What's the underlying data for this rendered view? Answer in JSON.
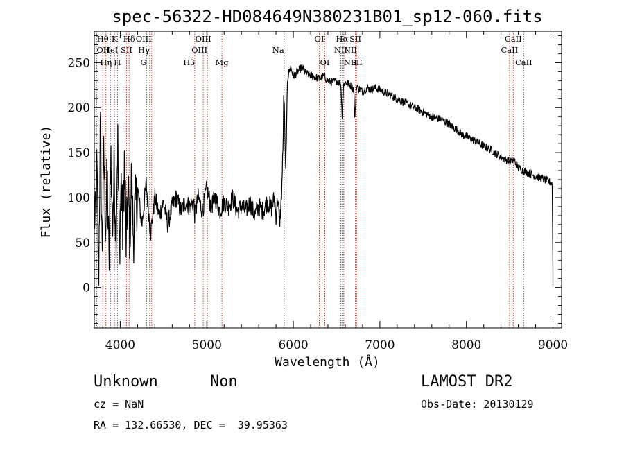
{
  "chart_data": {
    "type": "line",
    "title": "spec-56322-HD084649N380231B01_sp12-060.fits",
    "xlabel": "Wavelength (Å)",
    "ylabel": "Flux (relative)",
    "xlim": [
      3700,
      9100
    ],
    "ylim": [
      -45,
      285
    ],
    "xticks": [
      4000,
      5000,
      6000,
      7000,
      8000,
      9000
    ],
    "yticks": [
      0,
      50,
      100,
      150,
      200,
      250
    ],
    "grid": false,
    "series": [
      {
        "values_desc": "continuum anchor points of spectrum",
        "x": [
          3700,
          3710,
          3730,
          3750,
          3770,
          3790,
          3810,
          3830,
          3850,
          3870,
          3890,
          3910,
          3930,
          3950,
          3970,
          3990,
          4010,
          4030,
          4050,
          4070,
          4090,
          4110,
          4130,
          4150,
          4200,
          4250,
          4300,
          4350,
          4400,
          4450,
          4500,
          4550,
          4600,
          4650,
          4700,
          4750,
          4800,
          4850,
          4861,
          4900,
          4950,
          5000,
          5050,
          5100,
          5150,
          5200,
          5250,
          5300,
          5350,
          5400,
          5450,
          5500,
          5550,
          5600,
          5650,
          5700,
          5750,
          5780,
          5800,
          5820,
          5840,
          5860,
          5880,
          5890,
          5900,
          5910,
          5920,
          5930,
          5950,
          5970,
          6000,
          6050,
          6100,
          6150,
          6200,
          6250,
          6300,
          6350,
          6400,
          6450,
          6500,
          6550,
          6563,
          6580,
          6600,
          6650,
          6700,
          6710,
          6730,
          6750,
          6800,
          6850,
          6900,
          6950,
          7000,
          7100,
          7200,
          7300,
          7400,
          7500,
          7600,
          7700,
          7800,
          7850,
          7900,
          7950,
          8000,
          8100,
          8200,
          8300,
          8400,
          8500,
          8550,
          8600,
          8700,
          8800,
          8900,
          8950,
          9000
        ],
        "y": [
          95,
          60,
          130,
          10,
          180,
          40,
          150,
          70,
          120,
          20,
          160,
          70,
          130,
          60,
          170,
          40,
          120,
          60,
          150,
          40,
          110,
          60,
          120,
          60,
          110,
          70,
          115,
          60,
          100,
          80,
          95,
          70,
          90,
          100,
          85,
          95,
          90,
          95,
          80,
          100,
          85,
          110,
          90,
          100,
          85,
          95,
          90,
          100,
          85,
          90,
          85,
          95,
          80,
          90,
          85,
          95,
          88,
          100,
          80,
          100,
          70,
          95,
          150,
          220,
          180,
          130,
          160,
          230,
          240,
          245,
          235,
          240,
          245,
          238,
          236,
          234,
          232,
          235,
          230,
          228,
          230,
          226,
          190,
          225,
          228,
          226,
          220,
          185,
          224,
          222,
          218,
          222,
          220,
          222,
          220,
          215,
          210,
          205,
          200,
          195,
          190,
          187,
          182,
          178,
          175,
          170,
          168,
          163,
          157,
          152,
          145,
          140,
          142,
          133,
          128,
          124,
          120,
          118,
          115
        ]
      }
    ],
    "line_markers": [
      {
        "label": "Hθ",
        "x": 3798,
        "row": 0,
        "align": "middle"
      },
      {
        "label": "K",
        "x": 3934,
        "row": 0,
        "align": "middle"
      },
      {
        "label": "Hδ",
        "x": 4102,
        "row": 0,
        "align": "middle"
      },
      {
        "label": "OIII",
        "x": 4363,
        "row": 0,
        "align": "end"
      },
      {
        "label": "OIII",
        "x": 4959,
        "row": 0,
        "align": "middle"
      },
      {
        "label": "OI",
        "x": 6300,
        "row": 0,
        "align": "middle"
      },
      {
        "label": "Hα",
        "x": 6563,
        "row": 0,
        "align": "middle"
      },
      {
        "label": "SII",
        "x": 6717,
        "row": 0,
        "align": "middle"
      },
      {
        "label": "CaII",
        "x": 8542,
        "row": 0,
        "align": "middle"
      },
      {
        "label": "OII",
        "x": 3727,
        "row": 1,
        "align": "start"
      },
      {
        "label": "HeI",
        "x": 3889,
        "row": 1,
        "align": "middle"
      },
      {
        "label": "SII",
        "x": 4072,
        "row": 1,
        "align": "middle"
      },
      {
        "label": "Hγ",
        "x": 4340,
        "row": 1,
        "align": "end"
      },
      {
        "label": "OIII",
        "x": 5007,
        "row": 1,
        "align": "end"
      },
      {
        "label": "Na",
        "x": 5893,
        "row": 1,
        "align": "end"
      },
      {
        "label": "NII",
        "x": 6548,
        "row": 1,
        "align": "middle"
      },
      {
        "label": "NII",
        "x": 6583,
        "row": 1,
        "align": "start"
      },
      {
        "label": "CaII",
        "x": 8498,
        "row": 1,
        "align": "middle"
      },
      {
        "label": "Hη",
        "x": 3835,
        "row": 2,
        "align": "middle"
      },
      {
        "label": "H",
        "x": 3968,
        "row": 2,
        "align": "middle"
      },
      {
        "label": "G",
        "x": 4305,
        "row": 2,
        "align": "end"
      },
      {
        "label": "Hβ",
        "x": 4861,
        "row": 2,
        "align": "end"
      },
      {
        "label": "Mg",
        "x": 5175,
        "row": 2,
        "align": "middle"
      },
      {
        "label": "OI",
        "x": 6364,
        "row": 2,
        "align": "middle"
      },
      {
        "label": "NII",
        "x": 6583,
        "row": 2,
        "align": "start"
      },
      {
        "label": "SII",
        "x": 6731,
        "row": 2,
        "align": "middle"
      },
      {
        "label": "CaII",
        "x": 8662,
        "row": 2,
        "align": "middle"
      }
    ],
    "marker_color": "#c0392b"
  },
  "info": {
    "class": "Unknown",
    "subclass": "Non",
    "survey": "LAMOST DR2",
    "cz": "cz = NaN",
    "obs_date": "Obs-Date: 20130129",
    "coords": "RA = 132.66530, DEC =  39.95363"
  }
}
